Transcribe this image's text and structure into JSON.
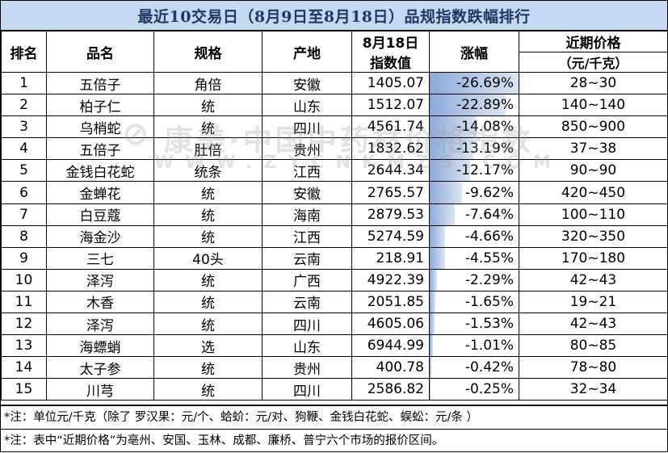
{
  "title": "最近10交易日（8月9日至8月18日）品规指数跌幅排行",
  "headers": {
    "rank": "排名",
    "name": "品名",
    "spec": "规格",
    "origin": "产地",
    "index_line1": "8月18日",
    "index_line2": "指数值",
    "change": "涨幅",
    "price_line1": "近期价格",
    "price_line2": "（元/千克）"
  },
  "rows": [
    {
      "rank": "1",
      "name": "五倍子",
      "spec": "角倍",
      "origin": "安徽",
      "index": "1405.07",
      "change": "-26.69%",
      "change_value": -26.69,
      "price": "28~30"
    },
    {
      "rank": "2",
      "name": "柏子仁",
      "spec": "统",
      "origin": "山东",
      "index": "1512.07",
      "change": "-22.89%",
      "change_value": -22.89,
      "price": "140~140"
    },
    {
      "rank": "3",
      "name": "乌梢蛇",
      "spec": "统",
      "origin": "四川",
      "index": "4561.74",
      "change": "-14.08%",
      "change_value": -14.08,
      "price": "850~900"
    },
    {
      "rank": "4",
      "name": "五倍子",
      "spec": "肚倍",
      "origin": "贵州",
      "index": "1832.62",
      "change": "-13.19%",
      "change_value": -13.19,
      "price": "37~38"
    },
    {
      "rank": "5",
      "name": "金钱白花蛇",
      "spec": "统条",
      "origin": "江西",
      "index": "2644.34",
      "change": "-12.17%",
      "change_value": -12.17,
      "price": "90~90"
    },
    {
      "rank": "6",
      "name": "金蝉花",
      "spec": "统",
      "origin": "安徽",
      "index": "2765.57",
      "change": "-9.62%",
      "change_value": -9.62,
      "price": "420~450"
    },
    {
      "rank": "7",
      "name": "白豆蔻",
      "spec": "统",
      "origin": "海南",
      "index": "2879.53",
      "change": "-7.64%",
      "change_value": -7.64,
      "price": "100~110"
    },
    {
      "rank": "8",
      "name": "海金沙",
      "spec": "统",
      "origin": "江西",
      "index": "5274.59",
      "change": "-4.66%",
      "change_value": -4.66,
      "price": "320~350"
    },
    {
      "rank": "9",
      "name": "三七",
      "spec": "40头",
      "origin": "云南",
      "index": "218.91",
      "change": "-4.55%",
      "change_value": -4.55,
      "price": "170~180"
    },
    {
      "rank": "10",
      "name": "泽泻",
      "spec": "统",
      "origin": "广西",
      "index": "4922.39",
      "change": "-2.29%",
      "change_value": -2.29,
      "price": "42~43"
    },
    {
      "rank": "11",
      "name": "木香",
      "spec": "统",
      "origin": "云南",
      "index": "2051.85",
      "change": "-1.65%",
      "change_value": -1.65,
      "price": "19~21"
    },
    {
      "rank": "12",
      "name": "泽泻",
      "spec": "统",
      "origin": "四川",
      "index": "4605.06",
      "change": "-1.53%",
      "change_value": -1.53,
      "price": "42~43"
    },
    {
      "rank": "13",
      "name": "海螵蛸",
      "spec": "选",
      "origin": "山东",
      "index": "6944.99",
      "change": "-1.01%",
      "change_value": -1.01,
      "price": "80~85"
    },
    {
      "rank": "14",
      "name": "太子参",
      "spec": "统",
      "origin": "贵州",
      "index": "400.78",
      "change": "-0.42%",
      "change_value": -0.42,
      "price": "78~80"
    },
    {
      "rank": "15",
      "name": "川芎",
      "spec": "统",
      "origin": "四川",
      "index": "2586.82",
      "change": "-0.25%",
      "change_value": -0.25,
      "price": "32~34"
    }
  ],
  "notes": [
    "*注：单位元/千克（除了 罗汉果：元/个、蛤蚧：元/对、狗鞭、金钱白花蛇、蜈蚣：元/条 ）",
    "*注：表中“近期价格”为亳州、安国、玉林、成都、廉桥、普宁六个市场的报价区间。"
  ],
  "watermark": {
    "logo": "⊘",
    "text": "康美·中国中药材价格指数",
    "url": "WWW.ZYCNKMZS.COM"
  },
  "colors": {
    "title_bg": "#c5d9f1",
    "title_text": "#1f3864",
    "bar_dark": "#8eaadb",
    "bar_light": "#dbe5f1"
  }
}
